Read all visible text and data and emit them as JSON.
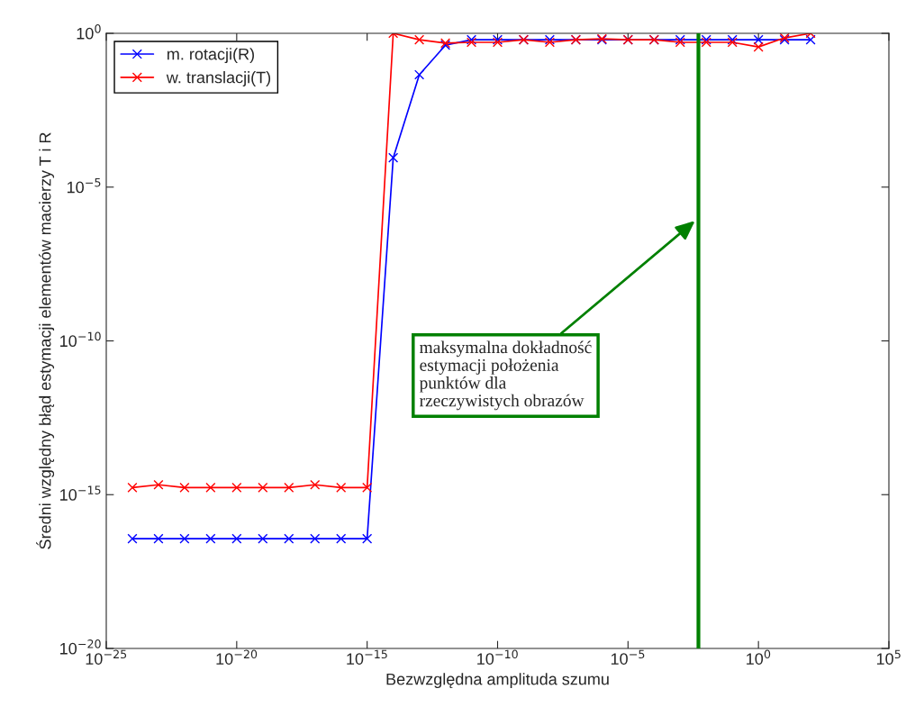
{
  "chart_data": {
    "type": "line",
    "xlabel": "Bezwzględna amplituda szumu",
    "ylabel": "Średni względny błąd estymacji elementów macierzy T i R",
    "log": "xy",
    "grid": false,
    "legend": "top left",
    "marker": "cross",
    "line_style": "solid",
    "xlim": [
      1e-25,
      100000.0
    ],
    "ylim": [
      1e-20,
      1
    ],
    "xticks": [
      {
        "value": 1e-25,
        "label": "10$^{−25}$"
      },
      {
        "value": 1e-20,
        "label": "10$^{−20}$"
      },
      {
        "value": 1e-15,
        "label": "10$^{−15}$"
      },
      {
        "value": 1e-10,
        "label": "10$^{−10}$"
      },
      {
        "value": 1e-05,
        "label": "10$^{−5}$"
      },
      {
        "value": 1,
        "label": "10$^{0}$"
      },
      {
        "value": 100000.0,
        "label": "10$^{5}$"
      }
    ],
    "yticks": [
      {
        "value": 1e-20,
        "label": "10$^{−20}$"
      },
      {
        "value": 1e-15,
        "label": "10$^{−15}$"
      },
      {
        "value": 1e-10,
        "label": "10$^{−10}$"
      },
      {
        "value": 1e-05,
        "label": "10$^{−5}$"
      },
      {
        "value": 1,
        "label": "10$^{0}$"
      }
    ],
    "x": [
      1e-24,
      1e-23,
      1e-22,
      1e-21,
      1e-20,
      1e-19,
      1e-18,
      1e-17,
      1e-16,
      1e-15,
      1e-14,
      1e-13,
      1e-12,
      1e-11,
      1e-10,
      1e-09,
      1e-08,
      1e-07,
      1e-06,
      1e-05,
      0.0001,
      0.001,
      0.01,
      0.1,
      1,
      10,
      100
    ],
    "series": [
      {
        "name": "m. rotacji(R)",
        "color": "#0000ff",
        "values": [
          3.7e-17,
          3.7e-17,
          3.7e-17,
          3.7e-17,
          3.7e-17,
          3.7e-17,
          3.7e-17,
          3.7e-17,
          3.7e-17,
          3.7e-17,
          9e-05,
          0.045,
          0.41,
          0.62,
          0.62,
          0.62,
          0.62,
          0.62,
          0.62,
          0.62,
          0.62,
          0.62,
          0.62,
          0.62,
          0.62,
          0.62,
          0.62
        ]
      },
      {
        "name": "w. translacji(T)",
        "color": "#ff0000",
        "values": [
          1.7e-15,
          2.1e-15,
          1.7e-15,
          1.7e-15,
          1.7e-15,
          1.7e-15,
          1.7e-15,
          2.1e-15,
          1.7e-15,
          1.7e-15,
          1,
          0.62,
          0.48,
          0.51,
          0.51,
          0.62,
          0.51,
          0.62,
          0.66,
          0.62,
          0.62,
          0.51,
          0.51,
          0.51,
          0.36,
          0.71,
          1
        ]
      }
    ],
    "ref_lines": [
      {
        "axis": "x",
        "value": 0.005,
        "color": "#008000",
        "line_style": "solid"
      }
    ],
    "annotations": [
      {
        "text": "maksymalna dokładność\nestymacji położenia\npunktów dla\nrzeczywistych obrazów",
        "x": 0.0037,
        "y": 8e-07
      }
    ]
  }
}
